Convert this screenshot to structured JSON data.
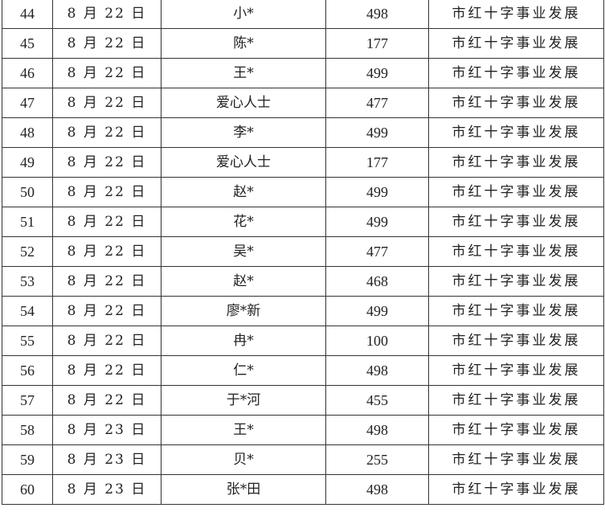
{
  "table": {
    "rows": [
      {
        "no": "44",
        "date": "8 月 22 日",
        "donor": "小*",
        "amount": "498",
        "purpose": "市红十字事业发展"
      },
      {
        "no": "45",
        "date": "8 月 22 日",
        "donor": "陈*",
        "amount": "177",
        "purpose": "市红十字事业发展"
      },
      {
        "no": "46",
        "date": "8 月 22 日",
        "donor": "王*",
        "amount": "499",
        "purpose": "市红十字事业发展"
      },
      {
        "no": "47",
        "date": "8 月 22 日",
        "donor": "爱心人士",
        "amount": "477",
        "purpose": "市红十字事业发展"
      },
      {
        "no": "48",
        "date": "8 月 22 日",
        "donor": "李*",
        "amount": "499",
        "purpose": "市红十字事业发展"
      },
      {
        "no": "49",
        "date": "8 月 22 日",
        "donor": "爱心人士",
        "amount": "177",
        "purpose": "市红十字事业发展"
      },
      {
        "no": "50",
        "date": "8 月 22 日",
        "donor": "赵*",
        "amount": "499",
        "purpose": "市红十字事业发展"
      },
      {
        "no": "51",
        "date": "8 月 22 日",
        "donor": "花*",
        "amount": "499",
        "purpose": "市红十字事业发展"
      },
      {
        "no": "52",
        "date": "8 月 22 日",
        "donor": "吴*",
        "amount": "477",
        "purpose": "市红十字事业发展"
      },
      {
        "no": "53",
        "date": "8 月 22 日",
        "donor": "赵*",
        "amount": "468",
        "purpose": "市红十字事业发展"
      },
      {
        "no": "54",
        "date": "8 月 22 日",
        "donor": "廖*新",
        "amount": "499",
        "purpose": "市红十字事业发展"
      },
      {
        "no": "55",
        "date": "8 月 22 日",
        "donor": "冉*",
        "amount": "100",
        "purpose": "市红十字事业发展"
      },
      {
        "no": "56",
        "date": "8 月 22 日",
        "donor": "仁*",
        "amount": "498",
        "purpose": "市红十字事业发展"
      },
      {
        "no": "57",
        "date": "8 月 22 日",
        "donor": "于*河",
        "amount": "455",
        "purpose": "市红十字事业发展"
      },
      {
        "no": "58",
        "date": "8 月 23 日",
        "donor": "王*",
        "amount": "498",
        "purpose": "市红十字事业发展"
      },
      {
        "no": "59",
        "date": "8 月 23 日",
        "donor": "贝*",
        "amount": "255",
        "purpose": "市红十字事业发展"
      },
      {
        "no": "60",
        "date": "8 月 23 日",
        "donor": "张*田",
        "amount": "498",
        "purpose": "市红十字事业发展"
      }
    ]
  }
}
